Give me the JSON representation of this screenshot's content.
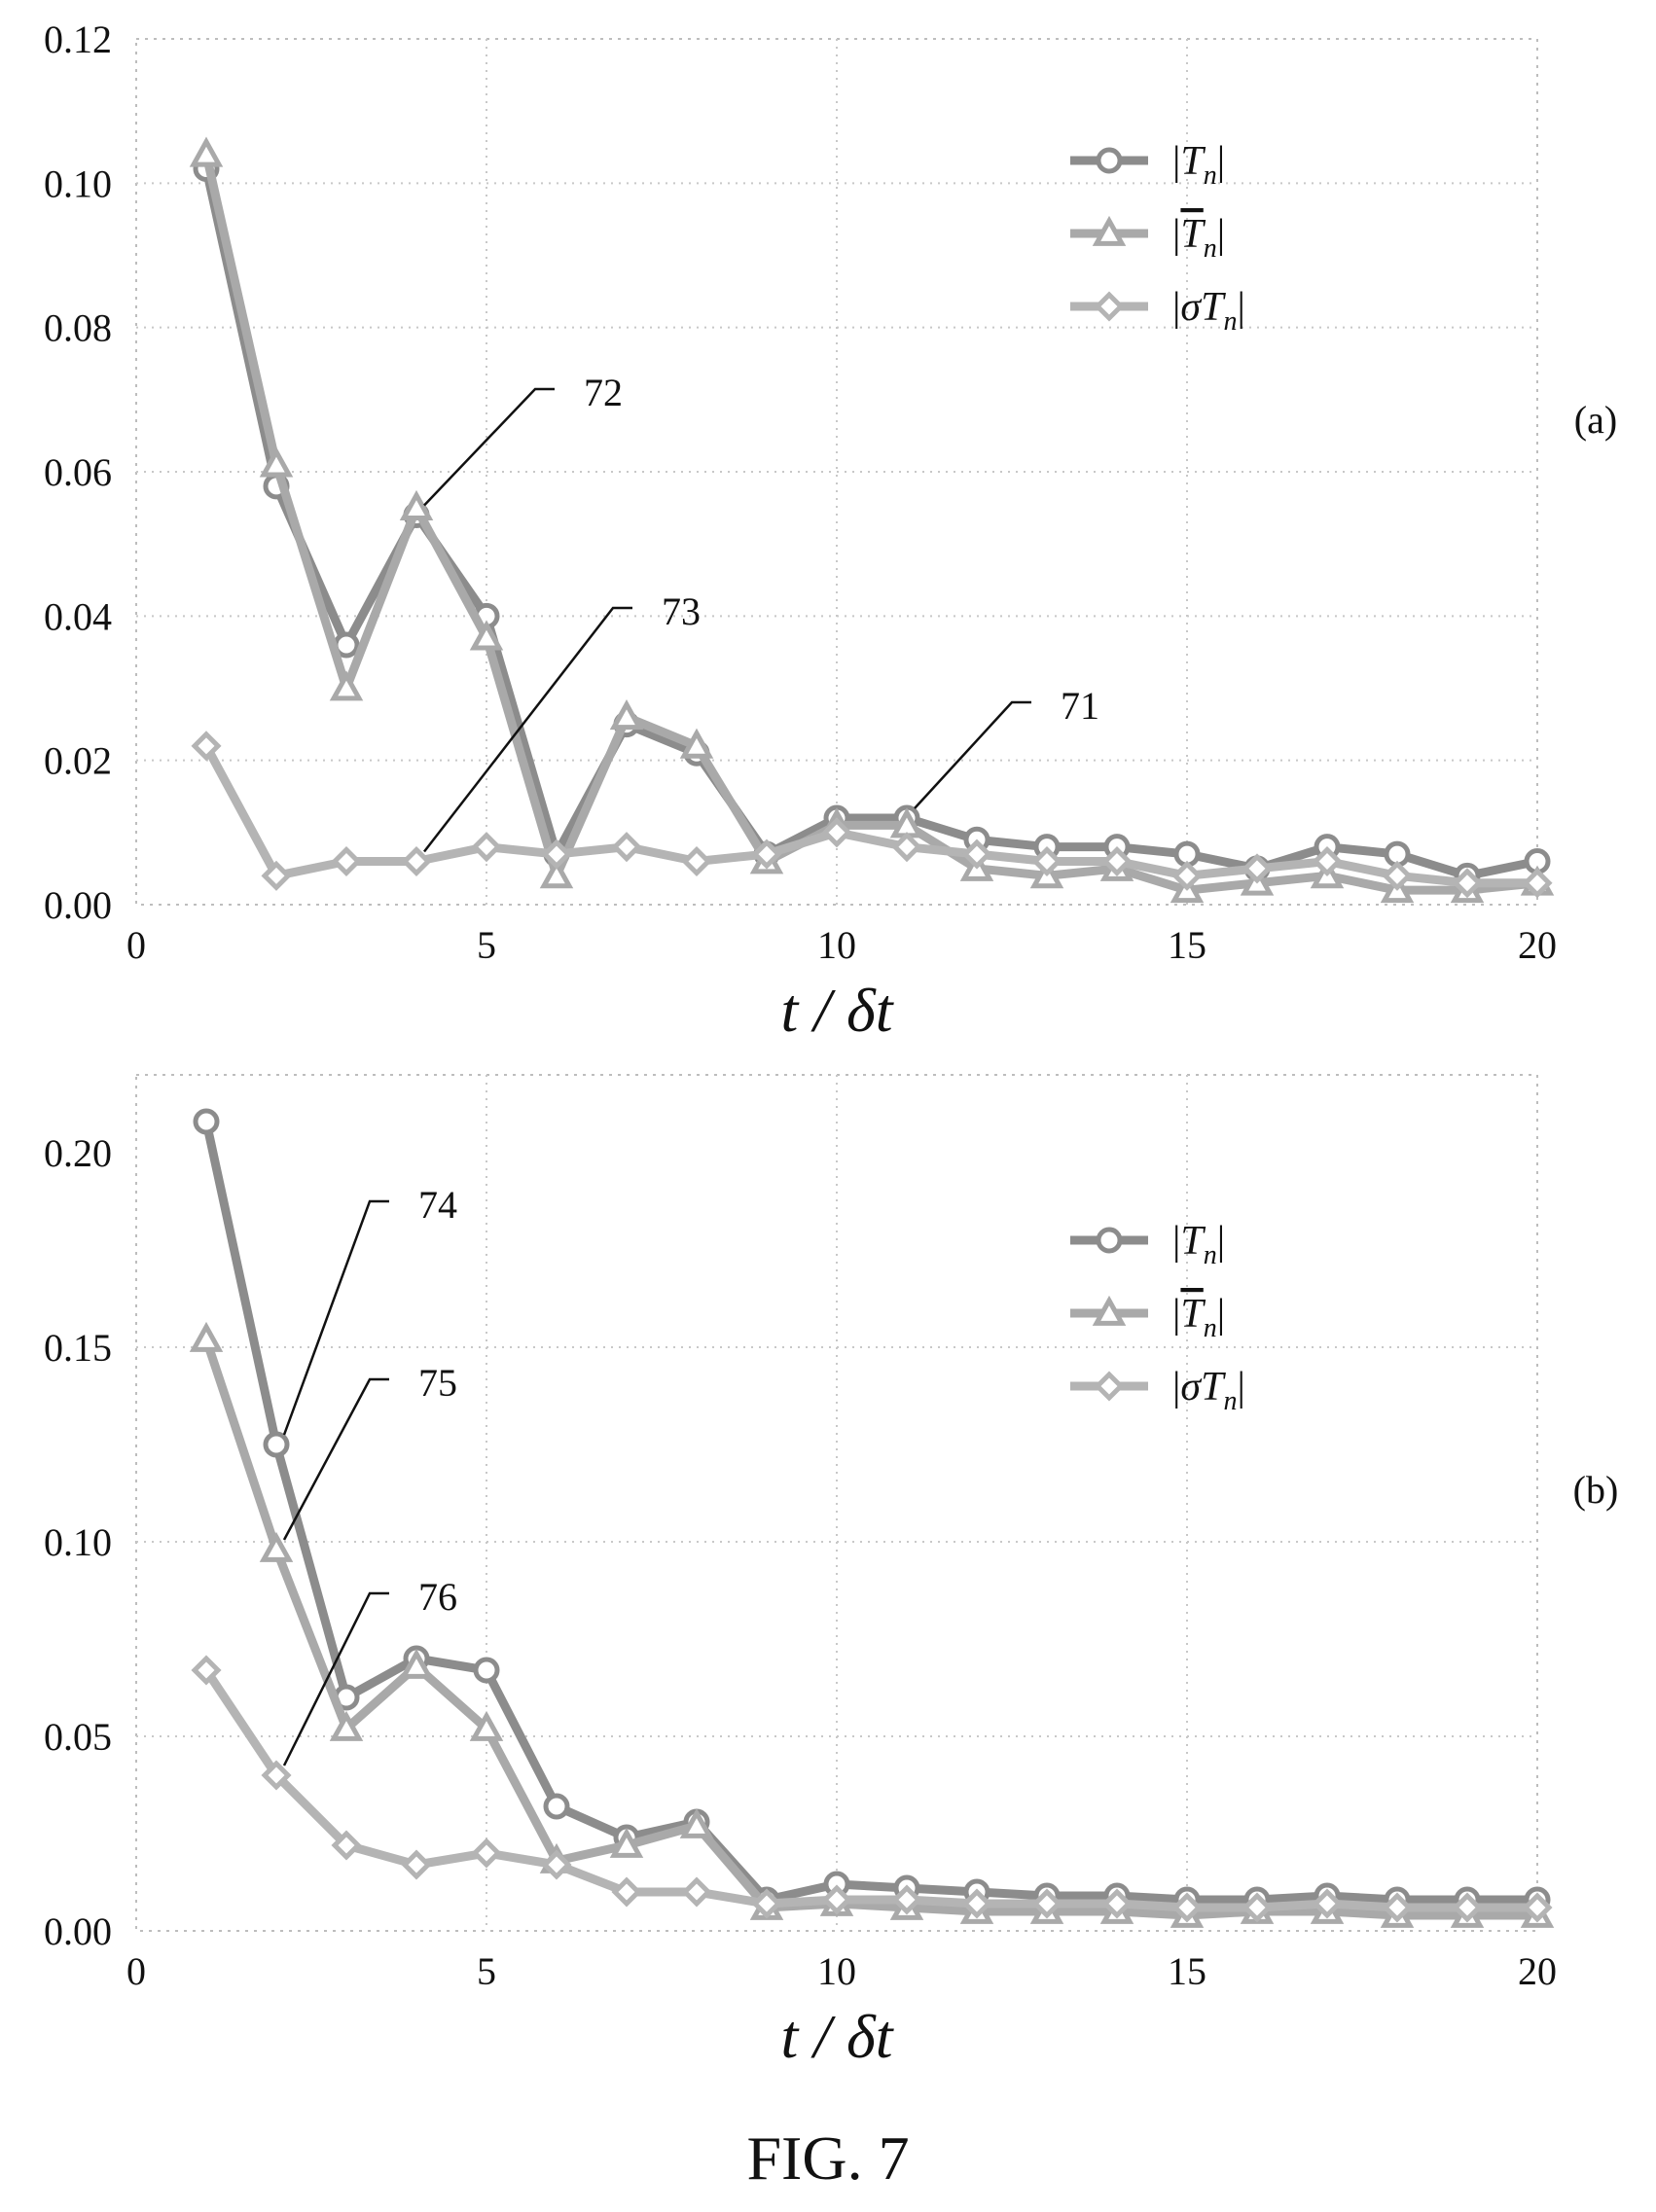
{
  "figure": {
    "caption": "FIG. 7"
  },
  "chart_data": [
    {
      "type": "line",
      "panel": "(a)",
      "xlabel": "t / δt",
      "xlim": [
        0,
        20
      ],
      "ylim": [
        0,
        0.12
      ],
      "xticks": [
        0,
        5,
        10,
        15,
        20
      ],
      "yticks": [
        0.0,
        0.02,
        0.04,
        0.06,
        0.08,
        0.1,
        0.12
      ],
      "ytick_labels": [
        "0.00",
        "0.02",
        "0.04",
        "0.06",
        "0.08",
        "0.10",
        "0.12"
      ],
      "grid": true,
      "legend_position": "top-right",
      "x": [
        1,
        2,
        3,
        4,
        5,
        6,
        7,
        8,
        9,
        10,
        11,
        12,
        13,
        14,
        15,
        16,
        17,
        18,
        19,
        20
      ],
      "series": [
        {
          "legend": "|Tn|",
          "marker": "circle",
          "color": "#8c8c8c",
          "values": [
            0.102,
            0.058,
            0.036,
            0.054,
            0.04,
            0.007,
            0.025,
            0.021,
            0.007,
            0.012,
            0.012,
            0.009,
            0.008,
            0.008,
            0.007,
            0.005,
            0.008,
            0.007,
            0.004,
            0.006
          ]
        },
        {
          "legend": "|T̄n|",
          "marker": "triangle",
          "color": "#a9a9a9",
          "values": [
            0.104,
            0.061,
            0.03,
            0.055,
            0.037,
            0.004,
            0.026,
            0.022,
            0.006,
            0.011,
            0.011,
            0.005,
            0.004,
            0.005,
            0.002,
            0.003,
            0.004,
            0.002,
            0.002,
            0.003
          ]
        },
        {
          "legend": "|σTn|",
          "marker": "diamond",
          "color": "#b4b4b4",
          "values": [
            0.022,
            0.004,
            0.006,
            0.006,
            0.008,
            0.007,
            0.008,
            0.006,
            0.007,
            0.01,
            0.008,
            0.007,
            0.006,
            0.006,
            0.004,
            0.005,
            0.006,
            0.004,
            0.003,
            0.003
          ]
        }
      ],
      "annotations": [
        {
          "text": "72",
          "target_series": 0,
          "target_index": 3
        },
        {
          "text": "73",
          "target_series": 2,
          "target_index": 3
        },
        {
          "text": "71",
          "target_series": 0,
          "target_index": 10
        }
      ]
    },
    {
      "type": "line",
      "panel": "(b)",
      "xlabel": "t / δt",
      "xlim": [
        0,
        20
      ],
      "ylim": [
        0,
        0.22
      ],
      "xticks": [
        0,
        5,
        10,
        15,
        20
      ],
      "yticks": [
        0.0,
        0.05,
        0.1,
        0.15,
        0.2
      ],
      "ytick_labels": [
        "0.00",
        "0.05",
        "0.10",
        "0.15",
        "0.20"
      ],
      "grid": true,
      "legend_position": "top-right",
      "x": [
        1,
        2,
        3,
        4,
        5,
        6,
        7,
        8,
        9,
        10,
        11,
        12,
        13,
        14,
        15,
        16,
        17,
        18,
        19,
        20
      ],
      "series": [
        {
          "legend": "|Tn|",
          "marker": "circle",
          "color": "#8c8c8c",
          "values": [
            0.208,
            0.125,
            0.06,
            0.07,
            0.067,
            0.032,
            0.024,
            0.028,
            0.008,
            0.012,
            0.011,
            0.01,
            0.009,
            0.009,
            0.008,
            0.008,
            0.009,
            0.008,
            0.008,
            0.008
          ]
        },
        {
          "legend": "|T̄n|",
          "marker": "triangle",
          "color": "#a9a9a9",
          "values": [
            0.152,
            0.098,
            0.052,
            0.068,
            0.052,
            0.018,
            0.022,
            0.027,
            0.006,
            0.007,
            0.006,
            0.005,
            0.005,
            0.005,
            0.004,
            0.005,
            0.005,
            0.004,
            0.004,
            0.004
          ]
        },
        {
          "legend": "|σTn|",
          "marker": "diamond",
          "color": "#b4b4b4",
          "values": [
            0.067,
            0.04,
            0.022,
            0.017,
            0.02,
            0.017,
            0.01,
            0.01,
            0.007,
            0.008,
            0.008,
            0.007,
            0.007,
            0.007,
            0.006,
            0.006,
            0.007,
            0.006,
            0.006,
            0.006
          ]
        }
      ],
      "annotations": [
        {
          "text": "74",
          "target_series": 0,
          "target_index": 1
        },
        {
          "text": "75",
          "target_series": 1,
          "target_index": 1
        },
        {
          "text": "76",
          "target_series": 2,
          "target_index": 1
        }
      ]
    }
  ]
}
